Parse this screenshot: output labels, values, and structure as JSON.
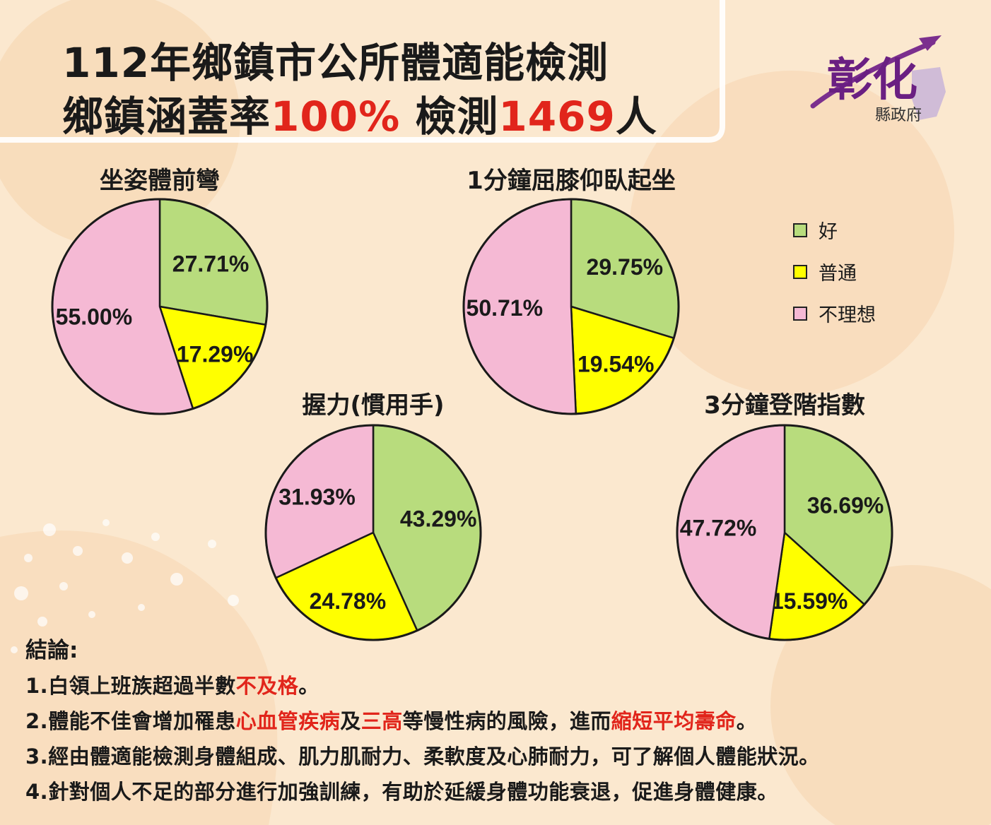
{
  "title": {
    "line1": "112年鄉鎮市公所體適能檢測",
    "line2": [
      {
        "text": "鄉鎮涵蓋率",
        "red": false
      },
      {
        "text": "100%",
        "red": true
      },
      {
        "text": " 檢測",
        "red": false
      },
      {
        "text": "1469",
        "red": true
      },
      {
        "text": "人",
        "red": false
      }
    ]
  },
  "logo": {
    "main": "彰化",
    "sub": "縣政府"
  },
  "legend": [
    {
      "label": "好",
      "color": "#b8dc7d"
    },
    {
      "label": "普通",
      "color": "#ffff00"
    },
    {
      "label": "不理想",
      "color": "#f5b9d4"
    }
  ],
  "chart_data": [
    {
      "type": "pie",
      "title": "坐姿體前彎",
      "categories": [
        "好",
        "普通",
        "不理想"
      ],
      "values": [
        27.71,
        17.29,
        55.0
      ],
      "labels": [
        "27.71%",
        "17.29%",
        "55.00%"
      ],
      "colors": [
        "#b8dc7d",
        "#ffff00",
        "#f5b9d4"
      ]
    },
    {
      "type": "pie",
      "title": "1分鐘屈膝仰臥起坐",
      "categories": [
        "好",
        "普通",
        "不理想"
      ],
      "values": [
        29.75,
        19.54,
        50.71
      ],
      "labels": [
        "29.75%",
        "19.54%",
        "50.71%"
      ],
      "colors": [
        "#b8dc7d",
        "#ffff00",
        "#f5b9d4"
      ]
    },
    {
      "type": "pie",
      "title": "握力(慣用手)",
      "categories": [
        "好",
        "普通",
        "不理想"
      ],
      "values": [
        43.29,
        24.78,
        31.93
      ],
      "labels": [
        "43.29%",
        "24.78%",
        "31.93%"
      ],
      "colors": [
        "#b8dc7d",
        "#ffff00",
        "#f5b9d4"
      ]
    },
    {
      "type": "pie",
      "title": "3分鐘登階指數",
      "categories": [
        "好",
        "普通",
        "不理想"
      ],
      "values": [
        36.69,
        15.59,
        47.72
      ],
      "labels": [
        "36.69%",
        "15.59%",
        "47.72%"
      ],
      "colors": [
        "#b8dc7d",
        "#ffff00",
        "#f5b9d4"
      ]
    }
  ],
  "conclusion": {
    "heading": "結論:",
    "lines": [
      [
        {
          "text": "1.白領上班族超過半數",
          "red": false
        },
        {
          "text": "不及格",
          "red": true
        },
        {
          "text": "。",
          "red": false
        }
      ],
      [
        {
          "text": "2.體能不佳會增加罹患",
          "red": false
        },
        {
          "text": "心血管疾病",
          "red": true
        },
        {
          "text": "及",
          "red": false
        },
        {
          "text": "三高",
          "red": true
        },
        {
          "text": "等慢性病的風險，進而",
          "red": false
        },
        {
          "text": "縮短平均壽命",
          "red": true
        },
        {
          "text": "。",
          "red": false
        }
      ],
      [
        {
          "text": "3.經由體適能檢測身體組成、肌力肌耐力、柔軟度及心肺耐力，可了解個人體能狀況。",
          "red": false
        }
      ],
      [
        {
          "text": "4.針對個人不足的部分進行加強訓練，有助於延緩身體功能衰退，促進身體健康。",
          "red": false
        }
      ]
    ]
  }
}
